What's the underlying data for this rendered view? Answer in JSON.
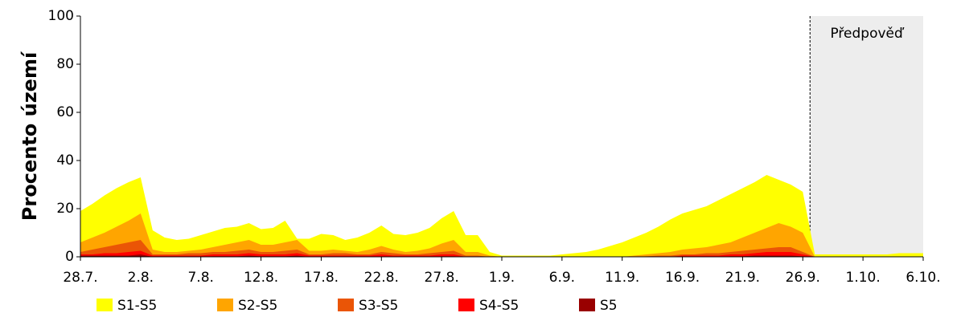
{
  "chart_data": {
    "type": "area",
    "ylabel": "Procento území",
    "categories": [
      "28.7.",
      null,
      null,
      null,
      null,
      "2.8.",
      null,
      null,
      null,
      null,
      "7.8.",
      null,
      null,
      null,
      null,
      "12.8.",
      null,
      null,
      null,
      null,
      "17.8.",
      null,
      null,
      null,
      null,
      "22.8.",
      null,
      null,
      null,
      null,
      "27.8.",
      null,
      null,
      null,
      null,
      "1.9.",
      null,
      null,
      null,
      null,
      "6.9.",
      null,
      null,
      null,
      null,
      "11.9.",
      null,
      null,
      null,
      null,
      "16.9.",
      null,
      null,
      null,
      null,
      "21.9.",
      null,
      null,
      null,
      null,
      "26.9.",
      null,
      null,
      null,
      null,
      "1.10.",
      null,
      null,
      null,
      null,
      "6.10."
    ],
    "series": [
      {
        "name": "S1-S5",
        "color": "#ffff00",
        "values": [
          19,
          22,
          25.5,
          28.5,
          31,
          33,
          11,
          8,
          7,
          7.5,
          9,
          10.5,
          12,
          12.5,
          14,
          11.5,
          12,
          15,
          7.5,
          7.5,
          9.5,
          9,
          7,
          8,
          10,
          13,
          9.5,
          9,
          10,
          12,
          16,
          19,
          9,
          9,
          2,
          0.5,
          0.5,
          0.5,
          0.5,
          0.5,
          1,
          1.5,
          2,
          3,
          4.5,
          6,
          8,
          10,
          12.5,
          15.5,
          18,
          19.5,
          21,
          23.5,
          26,
          28.5,
          31,
          34,
          32,
          30,
          27,
          1,
          1,
          1,
          1,
          1,
          1,
          1,
          1.5,
          1.5,
          1.5
        ]
      },
      {
        "name": "S2-S5",
        "color": "#ffa500",
        "values": [
          6,
          8,
          10,
          12.5,
          15,
          18,
          3,
          2,
          2,
          2.5,
          3,
          4,
          5,
          6,
          7,
          5,
          5,
          6,
          7,
          2.5,
          2.5,
          3,
          2.5,
          2,
          3,
          4.5,
          3,
          2,
          2.5,
          3.5,
          5.5,
          7,
          2,
          2,
          0.5,
          0,
          0,
          0,
          0,
          0,
          0,
          0,
          0,
          0,
          0,
          0,
          0.5,
          1,
          1.5,
          2,
          3,
          3.5,
          4,
          5,
          6,
          8,
          10,
          12,
          14,
          12.5,
          10,
          0,
          0,
          0,
          0,
          0,
          0,
          0,
          0,
          0,
          0
        ]
      },
      {
        "name": "S3-S5",
        "color": "#ea5506",
        "values": [
          2,
          3,
          4,
          5,
          6,
          7,
          1,
          1,
          1,
          1.5,
          1.5,
          2,
          2,
          2.5,
          3,
          2,
          2,
          2.5,
          3,
          1,
          1,
          1.5,
          1.5,
          1,
          1,
          2,
          1.5,
          1,
          1,
          1.5,
          2,
          2.5,
          0.5,
          0.5,
          0,
          0,
          0,
          0,
          0,
          0,
          0,
          0,
          0,
          0,
          0,
          0,
          0,
          0.2,
          0.5,
          0.5,
          1,
          1,
          1.5,
          1.5,
          2,
          2.5,
          3,
          3.5,
          4,
          4,
          2,
          0,
          0,
          0,
          0,
          0,
          0,
          0,
          0,
          0,
          0
        ]
      },
      {
        "name": "S4-S5",
        "color": "#ff0000",
        "values": [
          1,
          1,
          1.5,
          1.5,
          2,
          2.5,
          0.5,
          0.5,
          0.5,
          0.5,
          0.5,
          1,
          1,
          1,
          1.5,
          1,
          1,
          1,
          1.5,
          0.5,
          0.5,
          0.5,
          0.5,
          0.5,
          0.5,
          1,
          0.5,
          0.5,
          0.5,
          0.5,
          1,
          1,
          0,
          0,
          0,
          0,
          0,
          0,
          0,
          0,
          0,
          0,
          0,
          0,
          0,
          0,
          0,
          0,
          0,
          0,
          0.5,
          0.5,
          0.5,
          0.5,
          1,
          1,
          1.5,
          2,
          2,
          2,
          1,
          0,
          0,
          0,
          0,
          0,
          0,
          0,
          0,
          0,
          0
        ]
      },
      {
        "name": "S5",
        "color": "#990000",
        "values": [
          0.5,
          0.5,
          0.5,
          0.5,
          0.5,
          1,
          0,
          0,
          0,
          0,
          0,
          0.2,
          0.2,
          0.2,
          0.5,
          0.2,
          0.2,
          0.2,
          0.5,
          0,
          0,
          0,
          0,
          0,
          0,
          0,
          0,
          0,
          0,
          0,
          0.2,
          0.2,
          0,
          0,
          0,
          0,
          0,
          0,
          0,
          0,
          0,
          0,
          0,
          0,
          0,
          0,
          0,
          0,
          0,
          0,
          0,
          0,
          0,
          0,
          0.2,
          0.2,
          0.5,
          0.5,
          0.5,
          0.5,
          0.2,
          0,
          0,
          0,
          0,
          0,
          0,
          0,
          0,
          0,
          0
        ]
      }
    ],
    "ylim": [
      0,
      100
    ],
    "yticks": [
      0,
      20,
      40,
      60,
      80,
      100
    ],
    "forecast": {
      "label": "Předpověď",
      "start": 60.6
    }
  }
}
